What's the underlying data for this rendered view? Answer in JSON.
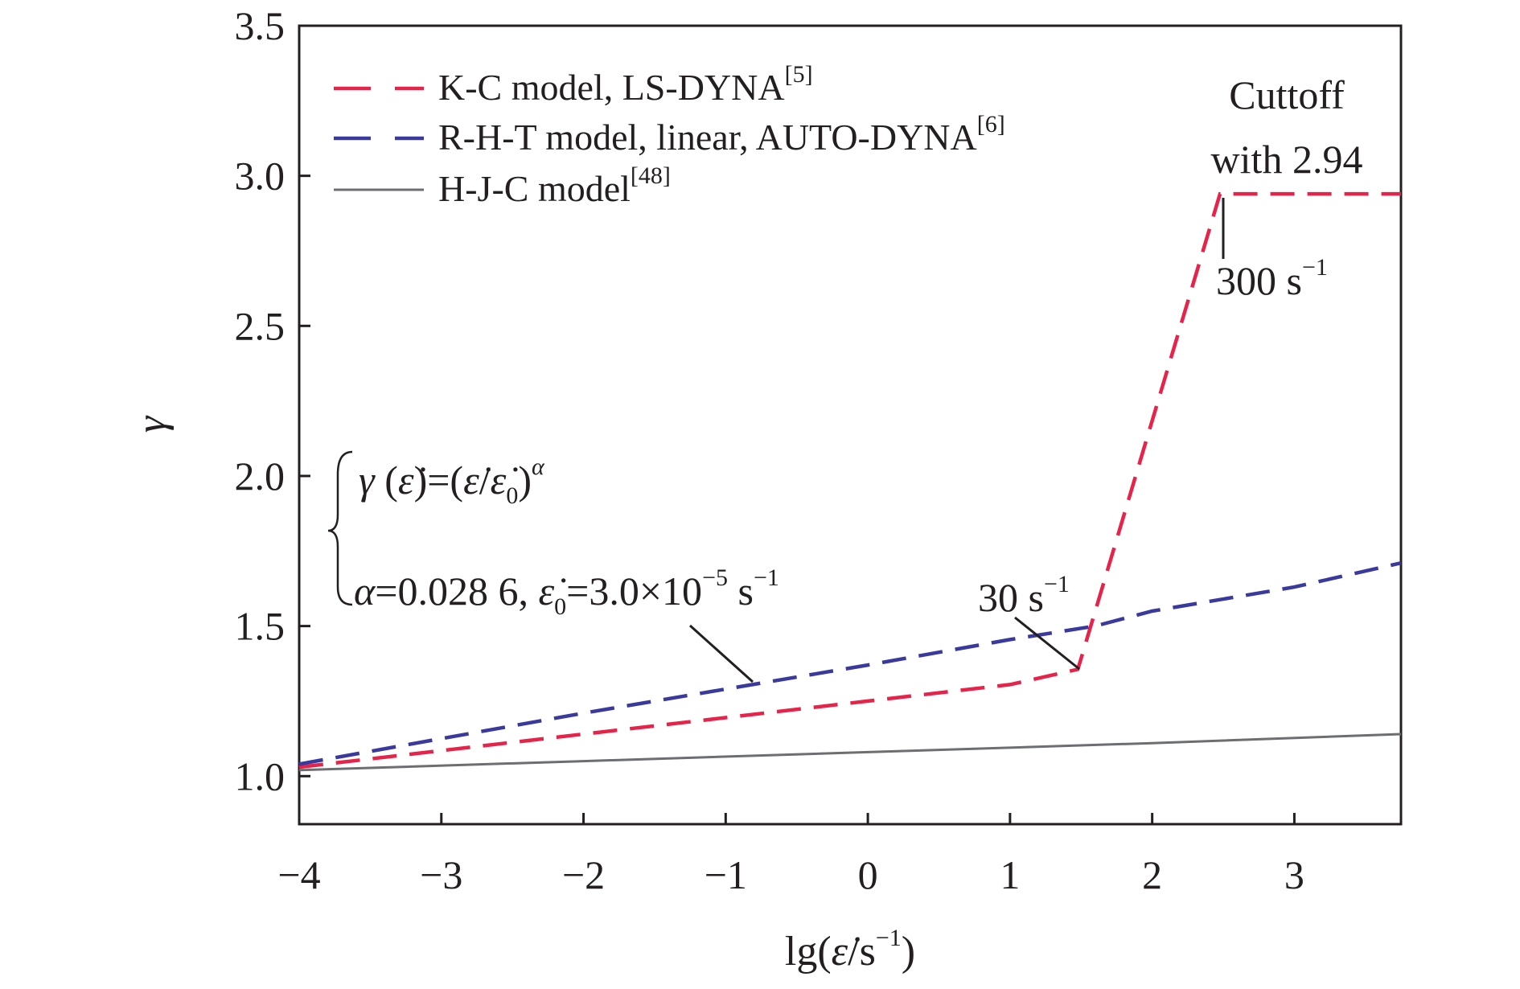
{
  "chart_data": {
    "type": "line",
    "title": "",
    "xlabel": {
      "prefix": "lg(",
      "symbol": "ε̇",
      "middle": "/s",
      "exp": "−1",
      "suffix": ")"
    },
    "ylabel": "γ",
    "xlim": [
      -4,
      3.75
    ],
    "ylim": [
      0.84,
      3.5
    ],
    "xticks": [
      -4,
      -3,
      -2,
      -1,
      0,
      1,
      2,
      3
    ],
    "xtick_labels": [
      "−4",
      "−3",
      "−2",
      "−1",
      "0",
      "1",
      "2",
      "3"
    ],
    "yticks": [
      1.0,
      1.5,
      2.0,
      2.5,
      3.0,
      3.5
    ],
    "ytick_labels": [
      "1.0",
      "1.5",
      "2.0",
      "2.5",
      "3.0",
      "3.5"
    ],
    "grid": false,
    "legend_position": "top-left",
    "series": [
      {
        "name": "K-C model, LS-DYNA",
        "ref": "[5]",
        "color": "#e8234a",
        "dash": "dashed",
        "x": [
          -4,
          -3,
          -2,
          -1,
          0,
          1,
          1.477,
          2.477,
          3.75
        ],
        "y": [
          1.03,
          1.085,
          1.14,
          1.195,
          1.25,
          1.305,
          1.356,
          2.94,
          2.94
        ]
      },
      {
        "name": "R-H-T model, linear, AUTO-DYNA",
        "ref": "[6]",
        "color": "#3a3a9e",
        "dash": "dashed",
        "x": [
          -4,
          -3,
          -2,
          -1,
          0,
          1,
          1.6,
          2,
          3,
          3.75
        ],
        "y": [
          1.04,
          1.125,
          1.21,
          1.29,
          1.37,
          1.455,
          1.5,
          1.55,
          1.63,
          1.71
        ]
      },
      {
        "name": "H-J-C model",
        "ref": "[48]",
        "color": "#6d6e71",
        "dash": "solid",
        "x": [
          -4,
          -2,
          0,
          2,
          3.75
        ],
        "y": [
          1.02,
          1.05,
          1.08,
          1.11,
          1.14
        ]
      }
    ],
    "annotations": {
      "cutoff_line1": "Cuttoff",
      "cutoff_line2": "with 2.94",
      "rate300": "300 s",
      "rate30": "30 s",
      "rate_exp": "−1",
      "eq1": {
        "gamma": "γ",
        "open": " (",
        "edot": "ε̇",
        "mid": ")=(",
        "edot2": "ε̇",
        "slash": "/",
        "edot0": "ε̇",
        "sub0": "0",
        "close": ")",
        "exp": "α"
      },
      "eq2": {
        "alpha": "α",
        "value": "=0.028 6, ",
        "edot0": "ε̇",
        "sub0": "0",
        "rest": "=3.0×10",
        "exp1": "−5",
        "unit": " s",
        "exp2": "−1"
      }
    }
  }
}
